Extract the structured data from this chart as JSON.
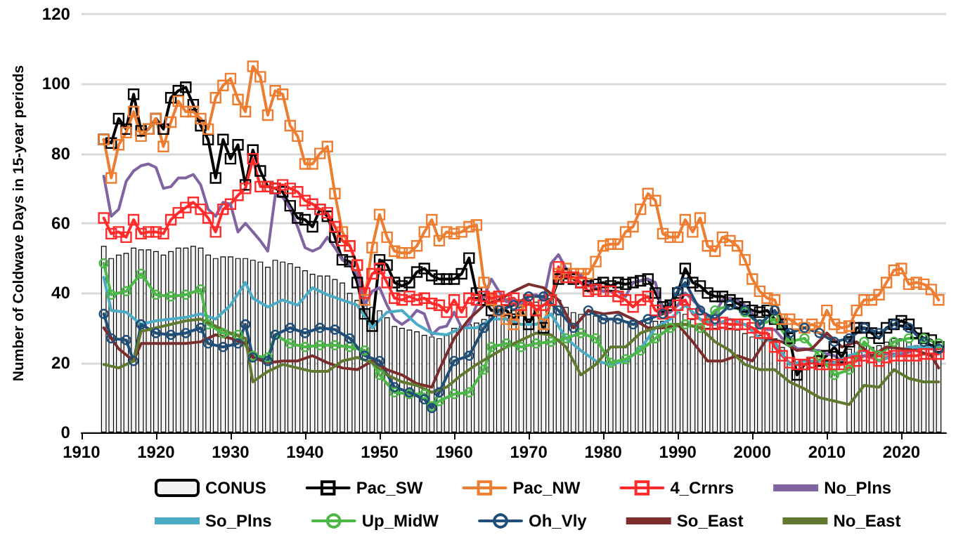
{
  "chart_data": {
    "type": "line",
    "ylabel": "Number of Coldwave Days in 15-year periods",
    "xlim": [
      1910,
      2026
    ],
    "xticks": [
      1910,
      1920,
      1930,
      1940,
      1950,
      1960,
      1970,
      1980,
      1990,
      2000,
      2010,
      2020
    ],
    "ylim": [
      0,
      120
    ],
    "yticks": [
      0,
      20,
      40,
      60,
      80,
      100,
      120
    ],
    "grid": "y",
    "legend": "bottom",
    "line_style": "solid",
    "x": [
      1913,
      1914,
      1915,
      1916,
      1917,
      1918,
      1919,
      1920,
      1921,
      1922,
      1923,
      1924,
      1925,
      1926,
      1927,
      1928,
      1929,
      1930,
      1931,
      1932,
      1933,
      1934,
      1935,
      1936,
      1937,
      1938,
      1939,
      1940,
      1941,
      1942,
      1943,
      1944,
      1945,
      1946,
      1947,
      1948,
      1949,
      1950,
      1951,
      1952,
      1953,
      1954,
      1955,
      1956,
      1957,
      1958,
      1959,
      1960,
      1961,
      1962,
      1963,
      1964,
      1965,
      1966,
      1967,
      1968,
      1969,
      1970,
      1971,
      1972,
      1973,
      1974,
      1975,
      1976,
      1977,
      1978,
      1979,
      1980,
      1981,
      1982,
      1983,
      1984,
      1985,
      1986,
      1987,
      1988,
      1989,
      1990,
      1991,
      1992,
      1993,
      1994,
      1995,
      1996,
      1997,
      1998,
      1999,
      2000,
      2001,
      2002,
      2003,
      2004,
      2005,
      2006,
      2007,
      2008,
      2009,
      2010,
      2011,
      2012,
      2013,
      2014,
      2015,
      2016,
      2017,
      2018,
      2019,
      2020,
      2021,
      2022,
      2023,
      2024,
      2025
    ],
    "series": [
      {
        "name": "CONUS",
        "type": "bar",
        "color": "#f2f2f2",
        "values": [
          53.5,
          50,
          51,
          51.5,
          53,
          52.5,
          52.5,
          52,
          51,
          52,
          53,
          53,
          53.5,
          53,
          51,
          50,
          50.5,
          50.5,
          50,
          50,
          49.5,
          49,
          47.5,
          49.5,
          49,
          48.5,
          47.5,
          46.5,
          45.5,
          45,
          45,
          44,
          43,
          40,
          38,
          37,
          36,
          35,
          33,
          30.5,
          30,
          29.5,
          29,
          28,
          27.5,
          27,
          28,
          30,
          30.5,
          31,
          31.5,
          32.5,
          33.5,
          34.5,
          35,
          35,
          36,
          37,
          37.5,
          38,
          38.5,
          38,
          36,
          34.5,
          34,
          34,
          33.5,
          32.5,
          32.5,
          32.5,
          32,
          32,
          32,
          32.5,
          32,
          32,
          33,
          34.5,
          34,
          32.5,
          31,
          30,
          30,
          30,
          30,
          29.5,
          28.5,
          27.5,
          28,
          28.5,
          27,
          24.5,
          20,
          18,
          19.5,
          20.5,
          20.5,
          20.5,
          20.5,
          null,
          24,
          26,
          25,
          24.5,
          25,
          26,
          27,
          27,
          26,
          25,
          24.5,
          24.5,
          24
        ]
      },
      {
        "name": "Pac_SW",
        "color": "#000000",
        "marker": "square",
        "values": [
          84,
          83,
          90,
          87,
          97,
          86.5,
          87,
          90,
          87,
          96,
          98,
          99,
          94,
          88,
          84,
          73,
          84,
          78.5,
          82.5,
          71,
          81,
          75,
          70.5,
          70,
          69,
          65,
          61.5,
          61,
          59,
          64,
          62,
          56,
          49.5,
          49,
          43,
          34,
          30.5,
          49.5,
          48,
          43,
          42,
          43,
          46,
          47,
          45,
          44,
          44,
          44,
          45.5,
          50,
          40,
          38,
          35,
          35,
          35,
          32.5,
          35,
          31,
          35,
          30,
          38,
          44,
          45.5,
          44,
          43,
          42,
          42.5,
          43,
          42,
          43,
          42.5,
          43,
          43.5,
          44,
          40,
          36,
          36.5,
          40,
          47,
          43,
          42,
          40,
          39,
          39,
          38,
          37,
          36,
          35,
          34.5,
          35,
          32.5,
          31,
          27,
          16.5,
          19.5,
          20,
          20.5,
          22,
          24.5,
          21.5,
          26,
          30,
          30,
          28.5,
          27,
          30,
          31,
          32,
          31,
          28.5,
          27,
          26.5,
          24.5
        ]
      },
      {
        "name": "Pac_NW",
        "color": "#ed7d31",
        "marker": "square",
        "values": [
          84,
          73,
          82.5,
          86,
          92,
          85,
          87,
          90,
          82,
          89,
          95,
          92,
          92,
          90,
          87,
          96,
          99.5,
          101.5,
          95.5,
          92,
          105,
          102,
          91,
          98,
          97,
          88,
          85,
          77,
          77,
          80,
          82,
          68.5,
          57.5,
          53.5,
          48,
          38,
          53,
          62.5,
          56,
          52,
          51.5,
          51.5,
          53.5,
          57.5,
          61,
          55,
          57.5,
          57,
          57.5,
          59,
          59.5,
          43,
          38,
          35,
          32.5,
          31,
          35,
          38,
          35,
          31,
          38,
          45.5,
          47,
          45.5,
          45.5,
          45.5,
          49,
          53.5,
          54,
          54,
          57.5,
          59,
          64,
          68.5,
          66.5,
          57,
          56,
          56,
          61,
          57.5,
          61.5,
          53.5,
          52,
          56,
          55,
          53.5,
          49.5,
          44,
          40.5,
          38.5,
          38,
          32.5,
          32.5,
          31,
          30,
          31,
          30,
          35,
          31,
          30,
          30.5,
          35,
          38,
          38,
          39.5,
          43,
          46.5,
          47,
          42.5,
          43,
          42.5,
          41,
          38
        ]
      },
      {
        "name": "4_Crnrs",
        "color": "#ff2b2b",
        "marker": "square",
        "values": [
          61.5,
          57,
          57.5,
          56,
          61,
          57,
          57.5,
          57.5,
          57,
          61,
          63,
          64.5,
          66,
          64,
          61.5,
          57.5,
          64,
          65.5,
          68,
          70,
          78.5,
          70.5,
          70.5,
          70,
          71,
          70,
          69,
          66.5,
          65.5,
          64,
          63,
          59,
          55,
          53.5,
          48,
          40,
          45.5,
          47,
          43,
          38.5,
          38,
          39,
          38,
          38.5,
          37,
          36.5,
          34.5,
          38,
          34.5,
          38.5,
          38,
          39,
          38.5,
          39,
          38,
          38.5,
          36.5,
          38,
          35,
          36.5,
          38,
          47.5,
          44.5,
          44.5,
          43,
          40.5,
          41,
          40.5,
          40.5,
          39,
          38,
          36,
          38,
          39,
          35,
          34,
          34.5,
          36.5,
          38,
          34,
          32.5,
          31,
          31,
          31.5,
          31,
          31,
          31,
          30,
          28.5,
          28.5,
          24.5,
          22,
          20,
          19.5,
          19.5,
          20,
          19.5,
          19.5,
          19.5,
          19.5,
          20,
          20.5,
          22,
          21.5,
          20.5,
          21.5,
          22,
          22,
          22,
          22,
          22.5,
          22.5,
          22.5
        ]
      },
      {
        "name": "No_Plns",
        "color": "#8064a2",
        "marker": "none",
        "values": [
          73.5,
          62,
          64,
          72,
          75,
          76.5,
          77,
          76,
          70,
          70.5,
          73,
          73,
          74,
          71,
          64,
          62,
          66,
          65.5,
          57.5,
          60,
          57.5,
          55,
          52,
          68,
          67.5,
          64,
          59,
          53,
          52,
          53,
          56,
          53,
          49.5,
          48,
          45.5,
          36.5,
          40.5,
          41.5,
          36.5,
          32.5,
          31,
          32.5,
          35,
          34,
          28,
          30,
          30.5,
          34.5,
          30,
          31,
          36.5,
          39,
          44,
          40.5,
          37.5,
          38,
          36.5,
          39,
          39.5,
          38,
          48.5,
          51,
          47,
          45.5,
          45,
          43,
          41.5,
          40.5,
          40.5,
          40.5,
          39,
          43,
          43.5,
          44,
          43,
          35,
          34.5,
          36.5,
          40,
          38,
          36,
          32.5,
          34,
          38,
          38.5,
          38,
          36.5,
          34,
          30,
          29.5,
          29.5,
          27,
          26,
          24,
          24,
          23.5,
          23.5,
          22.5,
          22,
          20.5,
          22,
          21.5,
          22,
          22,
          22,
          22.5,
          22.5,
          22.5,
          23,
          24,
          24.5,
          24,
          24
        ]
      },
      {
        "name": "So_Plns",
        "color": "#4bacc6",
        "marker": "none",
        "x": [
          1913,
          1914,
          1916,
          1918,
          1920,
          1922,
          1924,
          1926,
          1928,
          1930,
          1932,
          1933,
          1935,
          1937,
          1939,
          1941,
          1943,
          1945,
          1947,
          1949,
          1951,
          1953,
          1955,
          1957,
          1959,
          1961,
          1963,
          1965,
          1967,
          1969,
          1971,
          1973,
          1975,
          1977,
          1979,
          1981,
          1983,
          1985,
          1987,
          1989,
          1991,
          1993,
          1995,
          1997,
          1999,
          2001,
          2003,
          2005,
          2007,
          2009,
          2011,
          2013,
          2015,
          2017,
          2019,
          2021,
          2023,
          2025
        ],
        "values": [
          44.5,
          35,
          34.5,
          31,
          32,
          32.5,
          33,
          34,
          32.5,
          36.5,
          43,
          38.5,
          36,
          38,
          36.5,
          41.5,
          39.5,
          38,
          36.5,
          30,
          34.5,
          35,
          31,
          28.5,
          28,
          30,
          30,
          32.5,
          32.5,
          31,
          31,
          34,
          27,
          23.5,
          20.5,
          19.5,
          20.5,
          24,
          30,
          32.5,
          36.5,
          32.5,
          31,
          32.5,
          31,
          27,
          26,
          19.5,
          20.5,
          20.5,
          20,
          22,
          23.5,
          20.5,
          22,
          24.5,
          24.5,
          24.5
        ]
      },
      {
        "name": "Up_MidW",
        "color": "#4cb848",
        "marker": "circle",
        "x": [
          1913,
          1914,
          1916,
          1918,
          1920,
          1922,
          1924,
          1926,
          1927,
          1929,
          1931,
          1933,
          1935,
          1936,
          1938,
          1940,
          1942,
          1944,
          1946,
          1948,
          1950,
          1952,
          1954,
          1956,
          1957,
          1958,
          1960,
          1962,
          1964,
          1965,
          1967,
          1969,
          1971,
          1973,
          1975,
          1977,
          1979,
          1981,
          1983,
          1985,
          1987,
          1989,
          1991,
          1993,
          1995,
          1997,
          1999,
          2001,
          2003,
          2005,
          2007,
          2009,
          2011,
          2013,
          2015,
          2017,
          2019,
          2021,
          2023,
          2025
        ],
        "values": [
          48.5,
          39.5,
          40.5,
          45.5,
          39.5,
          39,
          39.5,
          41,
          31,
          28.5,
          28,
          22,
          21.5,
          28,
          25.5,
          24.5,
          25,
          25,
          24.5,
          23.5,
          16.5,
          11.5,
          11,
          11,
          7.5,
          9,
          11,
          11.5,
          18,
          24.5,
          25.5,
          24.5,
          25.5,
          26,
          27,
          28.5,
          27,
          20,
          21,
          23.5,
          27,
          30,
          31,
          30,
          35,
          36.5,
          34.5,
          31,
          32.5,
          26,
          27,
          22,
          16.5,
          18,
          26,
          22,
          26,
          27,
          27,
          25.5
        ]
      },
      {
        "name": "Oh_Vly",
        "color": "#1f4e79",
        "marker": "circle",
        "x": [
          1913,
          1914,
          1916,
          1917,
          1918,
          1920,
          1922,
          1924,
          1926,
          1927,
          1929,
          1931,
          1932,
          1933,
          1935,
          1936,
          1938,
          1940,
          1942,
          1944,
          1946,
          1948,
          1950,
          1952,
          1954,
          1956,
          1957,
          1958,
          1960,
          1962,
          1964,
          1966,
          1968,
          1970,
          1972,
          1974,
          1976,
          1978,
          1980,
          1982,
          1984,
          1986,
          1988,
          1990,
          1991,
          1993,
          1995,
          1997,
          1999,
          2001,
          2003,
          2005,
          2007,
          2009,
          2011,
          2013,
          2015,
          2017,
          2019,
          2021,
          2023,
          2025
        ],
        "values": [
          34,
          27,
          26.5,
          20.5,
          31,
          28.5,
          28,
          28.5,
          30,
          25.5,
          24.5,
          25.5,
          31,
          21.5,
          20.5,
          28,
          30,
          28.5,
          30,
          29.5,
          27,
          22,
          20.5,
          13,
          11.5,
          9.5,
          7,
          11.5,
          20.5,
          22,
          30,
          35,
          36.5,
          39,
          39,
          35,
          30,
          35,
          32.5,
          32.5,
          31,
          32.5,
          34,
          40.5,
          43,
          35,
          32.5,
          36.5,
          35,
          31,
          35,
          28.5,
          30,
          28.5,
          26,
          27,
          30,
          28.5,
          31,
          30,
          26,
          24
        ]
      },
      {
        "name": "So_East",
        "color": "#7b2d2d",
        "marker": "none",
        "x": [
          1913,
          1915,
          1917,
          1918,
          1920,
          1922,
          1924,
          1926,
          1928,
          1930,
          1932,
          1933,
          1935,
          1937,
          1939,
          1941,
          1943,
          1945,
          1947,
          1949,
          1951,
          1953,
          1955,
          1957,
          1958,
          1960,
          1962,
          1964,
          1966,
          1968,
          1970,
          1972,
          1974,
          1976,
          1978,
          1980,
          1982,
          1984,
          1986,
          1988,
          1990,
          1992,
          1994,
          1996,
          1998,
          2000,
          2002,
          2004,
          2006,
          2008,
          2010,
          2012,
          2014,
          2016,
          2018,
          2020,
          2022,
          2024,
          2025
        ],
        "values": [
          30,
          24,
          20.5,
          25.5,
          25.5,
          25.5,
          25.5,
          26,
          28,
          27,
          25.5,
          21.5,
          20,
          20.5,
          20.5,
          22,
          20,
          18.5,
          18,
          20.5,
          18,
          16.5,
          14,
          13,
          18,
          27,
          32.5,
          36.5,
          38,
          40.5,
          42.5,
          41.5,
          38,
          30,
          35,
          34,
          34.5,
          32.5,
          30,
          30,
          31,
          26,
          20.5,
          20.5,
          22,
          20.5,
          27,
          26,
          23.5,
          24,
          28.5,
          24.5,
          26,
          22,
          24.5,
          24,
          23.5,
          22,
          18.5
        ]
      },
      {
        "name": "No_East",
        "color": "#5f7a30",
        "marker": "none",
        "x": [
          1913,
          1915,
          1917,
          1918,
          1920,
          1922,
          1924,
          1926,
          1928,
          1930,
          1932,
          1933,
          1935,
          1937,
          1939,
          1941,
          1943,
          1945,
          1947,
          1949,
          1951,
          1953,
          1955,
          1957,
          1959,
          1961,
          1963,
          1965,
          1967,
          1969,
          1971,
          1973,
          1975,
          1977,
          1979,
          1981,
          1983,
          1985,
          1987,
          1989,
          1991,
          1993,
          1995,
          1997,
          1999,
          2001,
          2003,
          2005,
          2007,
          2009,
          2011,
          2013,
          2015,
          2017,
          2019,
          2021,
          2023,
          2025
        ],
        "values": [
          19.5,
          18.5,
          20.5,
          29,
          30,
          31,
          32,
          32.5,
          30.5,
          28.5,
          27,
          14.5,
          17.5,
          19.5,
          18.5,
          17.5,
          17.5,
          20.5,
          21.5,
          20,
          16.5,
          14.5,
          13.5,
          11.5,
          13,
          16.5,
          19.5,
          22,
          24.5,
          26.5,
          28.5,
          28,
          24.5,
          16.5,
          19.5,
          24.5,
          24.5,
          28.5,
          30,
          31,
          31,
          30,
          26,
          23.5,
          19.5,
          18,
          18,
          14.5,
          12.5,
          10,
          9,
          8,
          13.5,
          13,
          18,
          15.5,
          14.5,
          14.5
        ]
      }
    ]
  }
}
